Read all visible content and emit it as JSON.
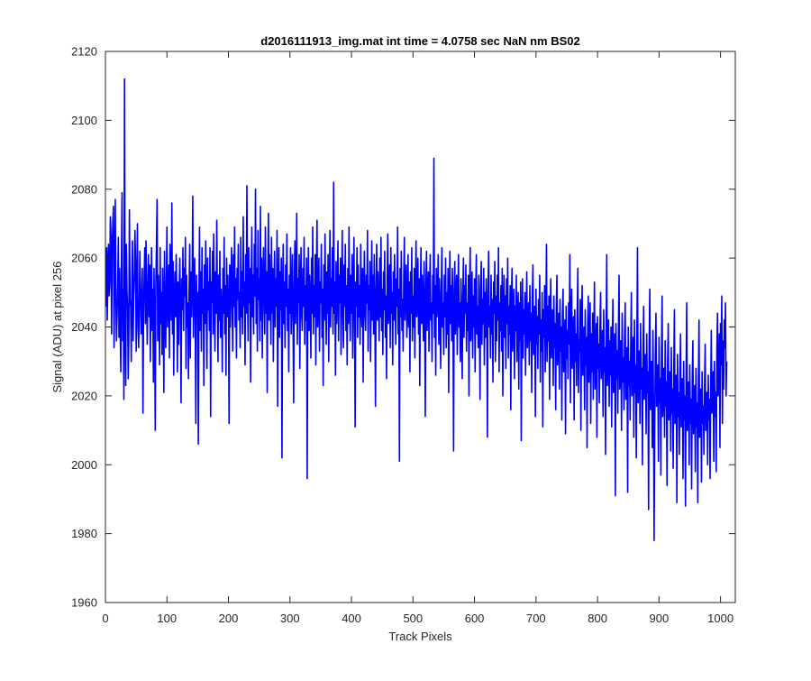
{
  "chart_data": {
    "type": "line",
    "title": "d2016111913_img.mat int time = 4.0758 sec  NaN nm BS02",
    "xlabel": "Track Pixels",
    "ylabel": "Signal (ADU) at pixel 256",
    "xlim": [
      0,
      1024
    ],
    "ylim": [
      1960,
      2120
    ],
    "xticks": [
      0,
      100,
      200,
      300,
      400,
      500,
      600,
      700,
      800,
      900,
      1000
    ],
    "yticks": [
      1960,
      1980,
      2000,
      2020,
      2040,
      2060,
      2080,
      2100,
      2120
    ],
    "grid": false,
    "series": [
      {
        "color": "#0000ff",
        "x_start": 1,
        "x_step": 1,
        "values": [
          2046,
          2063,
          2042,
          2058,
          2064,
          2049,
          2053,
          2072,
          2067,
          2038,
          2063,
          2070,
          2075,
          2034,
          2056,
          2077,
          2048,
          2036,
          2044,
          2053,
          2066,
          2037,
          2057,
          2040,
          2027,
          2059,
          2079,
          2036,
          2051,
          2019,
          2112,
          2041,
          2023,
          2064,
          2051,
          2046,
          2025,
          2037,
          2074,
          2048,
          2046,
          2030,
          2053,
          2065,
          2036,
          2049,
          2055,
          2068,
          2059,
          2033,
          2052,
          2070,
          2040,
          2034,
          2045,
          2062,
          2051,
          2038,
          2047,
          2057,
          2015,
          2044,
          2055,
          2063,
          2041,
          2065,
          2048,
          2035,
          2052,
          2061,
          2043,
          2058,
          2030,
          2049,
          2063,
          2039,
          2051,
          2024,
          2057,
          2042,
          2010,
          2052,
          2064,
          2077,
          2036,
          2055,
          2046,
          2029,
          2063,
          2041,
          2050,
          2032,
          2057,
          2046,
          2021,
          2062,
          2045,
          2034,
          2052,
          2069,
          2040,
          2047,
          2058,
          2031,
          2064,
          2052,
          2042,
          2076,
          2038,
          2059,
          2026,
          2046,
          2056,
          2043,
          2061,
          2049,
          2027,
          2053,
          2035,
          2051,
          2060,
          2043,
          2018,
          2054,
          2045,
          2063,
          2039,
          2057,
          2049,
          2066,
          2028,
          2055,
          2040,
          2047,
          2025,
          2050,
          2064,
          2031,
          2056,
          2043,
          2054,
          2078,
          2037,
          2049,
          2060,
          2042,
          2012,
          2055,
          2044,
          2050,
          2006,
          2048,
          2069,
          2039,
          2056,
          2033,
          2063,
          2044,
          2051,
          2023,
          2058,
          2041,
          2065,
          2047,
          2028,
          2060,
          2045,
          2053,
          2039,
          2063,
          2014,
          2053,
          2047,
          2062,
          2038,
          2067,
          2049,
          2033,
          2056,
          2044,
          2071,
          2050,
          2030,
          2055,
          2042,
          2062,
          2037,
          2051,
          2045,
          2027,
          2057,
          2044,
          2066,
          2038,
          2052,
          2026,
          2060,
          2043,
          2055,
          2047,
          2012,
          2058,
          2040,
          2052,
          2063,
          2045,
          2033,
          2061,
          2046,
          2069,
          2040,
          2054,
          2031,
          2057,
          2048,
          2064,
          2042,
          2050,
          2034,
          2066,
          2043,
          2056,
          2038,
          2072,
          2046,
          2053,
          2029,
          2061,
          2044,
          2081,
          2050,
          2036,
          2063,
          2047,
          2057,
          2024,
          2051,
          2069,
          2043,
          2055,
          2038,
          2064,
          2049,
          2080,
          2041,
          2057,
          2033,
          2068,
          2048,
          2054,
          2036,
          2075,
          2042,
          2060,
          2031,
          2052,
          2063,
          2047,
          2038,
          2069,
          2044,
          2056,
          2021,
          2055,
          2073,
          2042,
          2061,
          2049,
          2035,
          2066,
          2044,
          2057,
          2030,
          2052,
          2062,
          2040,
          2054,
          2046,
          2068,
          2017,
          2050,
          2063,
          2037,
          2056,
          2045,
          2060,
          2002,
          2048,
          2064,
          2041,
          2053,
          2034,
          2058,
          2046,
          2067,
          2039,
          2051,
          2027,
          2055,
          2044,
          2063,
          2038,
          2049,
          2061,
          2042,
          2018,
          2053,
          2065,
          2041,
          2050,
          2073,
          2035,
          2054,
          2047,
          2061,
          2028,
          2050,
          2063,
          2044,
          2039,
          2057,
          2046,
          2066,
          2035,
          2052,
          2042,
          2060,
          1996,
          2048,
          2063,
          2039,
          2055,
          2047,
          2031,
          2060,
          2044,
          2069,
          2038,
          2052,
          2043,
          2061,
          2029,
          2055,
          2071,
          2040,
          2046,
          2060,
          2033,
          2053,
          2047,
          2064,
          2037,
          2051,
          2023,
          2058,
          2042,
          2067,
          2049,
          2035,
          2056,
          2044,
          2061,
          2030,
          2050,
          2068,
          2040,
          2054,
          2046,
          2063,
          2038,
          2082,
          2044,
          2053,
          2026,
          2059,
          2041,
          2049,
          2065,
          2036,
          2055,
          2047,
          2060,
          2032,
          2051,
          2068,
          2043,
          2034,
          2058,
          2046,
          2064,
          2039,
          2052,
          2029,
          2057,
          2041,
          2069,
          2047,
          2036,
          2055,
          2044,
          2061,
          2031,
          2049,
          2066,
          2041,
          2011,
          2053,
          2046,
          2063,
          2037,
          2058,
          2043,
          2052,
          2035,
          2064,
          2048,
          2040,
          2057,
          2024,
          2050,
          2062,
          2044,
          2039,
          2055,
          2047,
          2068,
          2033,
          2052,
          2045,
          2059,
          2030,
          2048,
          2065,
          2042,
          2055,
          2038,
          2061,
          2046,
          2017,
          2050,
          2064,
          2042,
          2056,
          2047,
          2036,
          2060,
          2043,
          2066,
          2039,
          2051,
          2032,
          2056,
          2045,
          2062,
          2037,
          2049,
          2025,
          2054,
          2067,
          2041,
          2047,
          2058,
          2034,
          2063,
          2044,
          2050,
          2029,
          2056,
          2042,
          2061,
          2048,
          2035,
          2054,
          2046,
          2069,
          2038,
          2051,
          2001,
          2057,
          2043,
          2062,
          2039,
          2048,
          2033,
          2055,
          2066,
          2042,
          2050,
          2058,
          2037,
          2045,
          2061,
          2040,
          2053,
          2027,
          2056,
          2044,
          2063,
          2036,
          2049,
          2040,
          2057,
          2031,
          2052,
          2065,
          2043,
          2047,
          2060,
          2038,
          2054,
          2023,
          2050,
          2063,
          2041,
          2055,
          2046,
          2036,
          2059,
          2045,
          2014,
          2052,
          2062,
          2039,
          2048,
          2056,
          2033,
          2051,
          2061,
          2042,
          2047,
          2030,
          2055,
          2044,
          2089,
          2037,
          2052,
          2026,
          2057,
          2043,
          2049,
          2061,
          2035,
          2054,
          2045,
          2028,
          2051,
          2063,
          2040,
          2047,
          2032,
          2055,
          2043,
          2060,
          2034,
          2050,
          2038,
          2057,
          2021,
          2048,
          2062,
          2041,
          2052,
          2036,
          2057,
          2044,
          2004,
          2051,
          2059,
          2038,
          2046,
          2055,
          2032,
          2050,
          2061,
          2040,
          2047,
          2030,
          2054,
          2042,
          2025,
          2049,
          2060,
          2037,
          2052,
          2044,
          2058,
          2033,
          2047,
          2039,
          2055,
          2020,
          2051,
          2063,
          2036,
          2045,
          2056,
          2031,
          2049,
          2040,
          2054,
          2027,
          2050,
          2061,
          2038,
          2046,
          2034,
          2055,
          2042,
          2019,
          2052,
          2059,
          2035,
          2048,
          2041,
          2057,
          2029,
          2050,
          2037,
          2054,
          2045,
          2008,
          2051,
          2062,
          2040,
          2046,
          2031,
          2055,
          2038,
          2048,
          2024,
          2053,
          2044,
          2059,
          2030,
          2049,
          2036,
          2055,
          2042,
          2063,
          2027,
          2047,
          2039,
          2052,
          2033,
          2057,
          2020,
          2045,
          2055,
          2037,
          2049,
          2028,
          2054,
          2041,
          2060,
          2031,
          2046,
          2038,
          2052,
          2016,
          2048,
          2057,
          2033,
          2044,
          2051,
          2025,
          2046,
          2039,
          2055,
          2030,
          2043,
          2050,
          2022,
          2047,
          2036,
          2053,
          2007,
          2041,
          2054,
          2031,
          2045,
          2038,
          2050,
          2026,
          2043,
          2056,
          2034,
          2040,
          2047,
          2029,
          2052,
          2036,
          2044,
          2021,
          2049,
          2058,
          2032,
          2040,
          2046,
          2014,
          2051,
          2035,
          2043,
          2028,
          2048,
          2038,
          2055,
          2024,
          2042,
          2033,
          2050,
          2011,
          2045,
          2037,
          2052,
          2027,
          2041,
          2064,
          2030,
          2046,
          2036,
          2049,
          2019,
          2043,
          2054,
          2031,
          2038,
          2045,
          2023,
          2049,
          2034,
          2041,
          2016,
          2046,
          2055,
          2029,
          2037,
          2044,
          2022,
          2048,
          2033,
          2040,
          2013,
          2044,
          2051,
          2027,
          2036,
          2042,
          2009,
          2046,
          2031,
          2039,
          2025,
          2047,
          2035,
          2061,
          2018,
          2040,
          2051,
          2028,
          2035,
          2043,
          2013,
          2045,
          2030,
          2038,
          2023,
          2044,
          2057,
          2021,
          2036,
          2033,
          2048,
          2010,
          2042,
          2052,
          2026,
          2034,
          2040,
          2016,
          2045,
          2029,
          2037,
          2005,
          2041,
          2049,
          2024,
          2033,
          2047,
          2012,
          2038,
          2027,
          2044,
          2019,
          2036,
          2053,
          2022,
          2031,
          2041,
          2008,
          2043,
          2028,
          2035,
          2018,
          2040,
          2050,
          2025,
          2032,
          2039,
          2014,
          2045,
          2027,
          2034,
          2003,
          2038,
          2061,
          2023,
          2030,
          2042,
          2017,
          2036,
          2026,
          2040,
          2011,
          2035,
          2048,
          2021,
          2029,
          2038,
          1991,
          2041,
          2025,
          2033,
          2015,
          2039,
          2055,
          2022,
          2028,
          2036,
          2010,
          2044,
          2024,
          2031,
          2016,
          2037,
          2047,
          2019,
          2027,
          2034,
          1992,
          2040,
          2023,
          2030,
          2013,
          2035,
          2050,
          2020,
          2026,
          2037,
          2008,
          2042,
          2021,
          2029,
          2002,
          2036,
          2063,
          2018,
          2025,
          2033,
          2012,
          2041,
          2022,
          2028,
          2000,
          2034,
          2046,
          2019,
          2024,
          2032,
          2009,
          2038,
          2021,
          2027,
          1987,
          2035,
          2051,
          2016,
          2023,
          2030,
          2005,
          2039,
          2019,
          1978,
          2011,
          2032,
          2044,
          2017,
          2022,
          2029,
          2001,
          2037,
          2018,
          2025,
          1997,
          2033,
          2049,
          2014,
          2021,
          2028,
          2008,
          2036,
          2017,
          2024,
          1994,
          2030,
          2041,
          2013,
          2020,
          2027,
          2004,
          2034,
          2015,
          2022,
          1999,
          2028,
          2045,
          2012,
          2019,
          2026,
          1989,
          2032,
          2014,
          2021,
          2003,
          2027,
          2038,
          2011,
          2018,
          2025,
          1996,
          2030,
          2013,
          2020,
          1988,
          2026,
          2047,
          2010,
          2017,
          2024,
          2000,
          2029,
          2012,
          2019,
          1993,
          2025,
          2036,
          2009,
          2016,
          2023,
          1998,
          2028,
          2011,
          2018,
          1989,
          2024,
          2042,
          2008,
          2015,
          2022,
          1995,
          2027,
          2012,
          2017,
          2003,
          2023,
          2035,
          2010,
          2014,
          2021,
          2000,
          2026,
          2013,
          2019,
          1996,
          2022,
          2039,
          2015,
          2018,
          2027,
          2001,
          2030,
          2014,
          2021,
          1998,
          2033,
          2044,
          2020,
          2026,
          2038,
          2005,
          2041,
          2029,
          2049,
          2012,
          2036,
          2022,
          2042,
          2034,
          2047,
          2020,
          2030
        ]
      }
    ]
  }
}
